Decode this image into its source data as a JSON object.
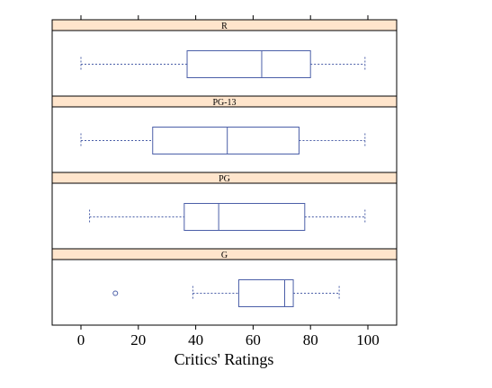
{
  "chart_data": {
    "type": "box",
    "orientation": "horizontal",
    "xlabel": "Critics' Ratings",
    "xlim": [
      -10,
      110
    ],
    "xticks": [
      0,
      20,
      40,
      60,
      80,
      100
    ],
    "panels": [
      {
        "strip": "R",
        "box": {
          "whisker_low": 0,
          "q1": 37,
          "median": 63,
          "q3": 80,
          "whisker_high": 99
        },
        "outliers": []
      },
      {
        "strip": "PG-13",
        "box": {
          "whisker_low": 0,
          "q1": 25,
          "median": 51,
          "q3": 76,
          "whisker_high": 99
        },
        "outliers": []
      },
      {
        "strip": "PG",
        "box": {
          "whisker_low": 3,
          "q1": 36,
          "median": 48,
          "q3": 78,
          "whisker_high": 99
        },
        "outliers": []
      },
      {
        "strip": "G",
        "box": {
          "whisker_low": 39,
          "q1": 55,
          "median": 71,
          "q3": 74,
          "whisker_high": 90
        },
        "outliers": [
          12
        ]
      }
    ],
    "colors": {
      "strip": "#ffe5cc",
      "box": "#4b5fa8",
      "whisker": "#4b5fa8",
      "frame": "#000000"
    }
  }
}
